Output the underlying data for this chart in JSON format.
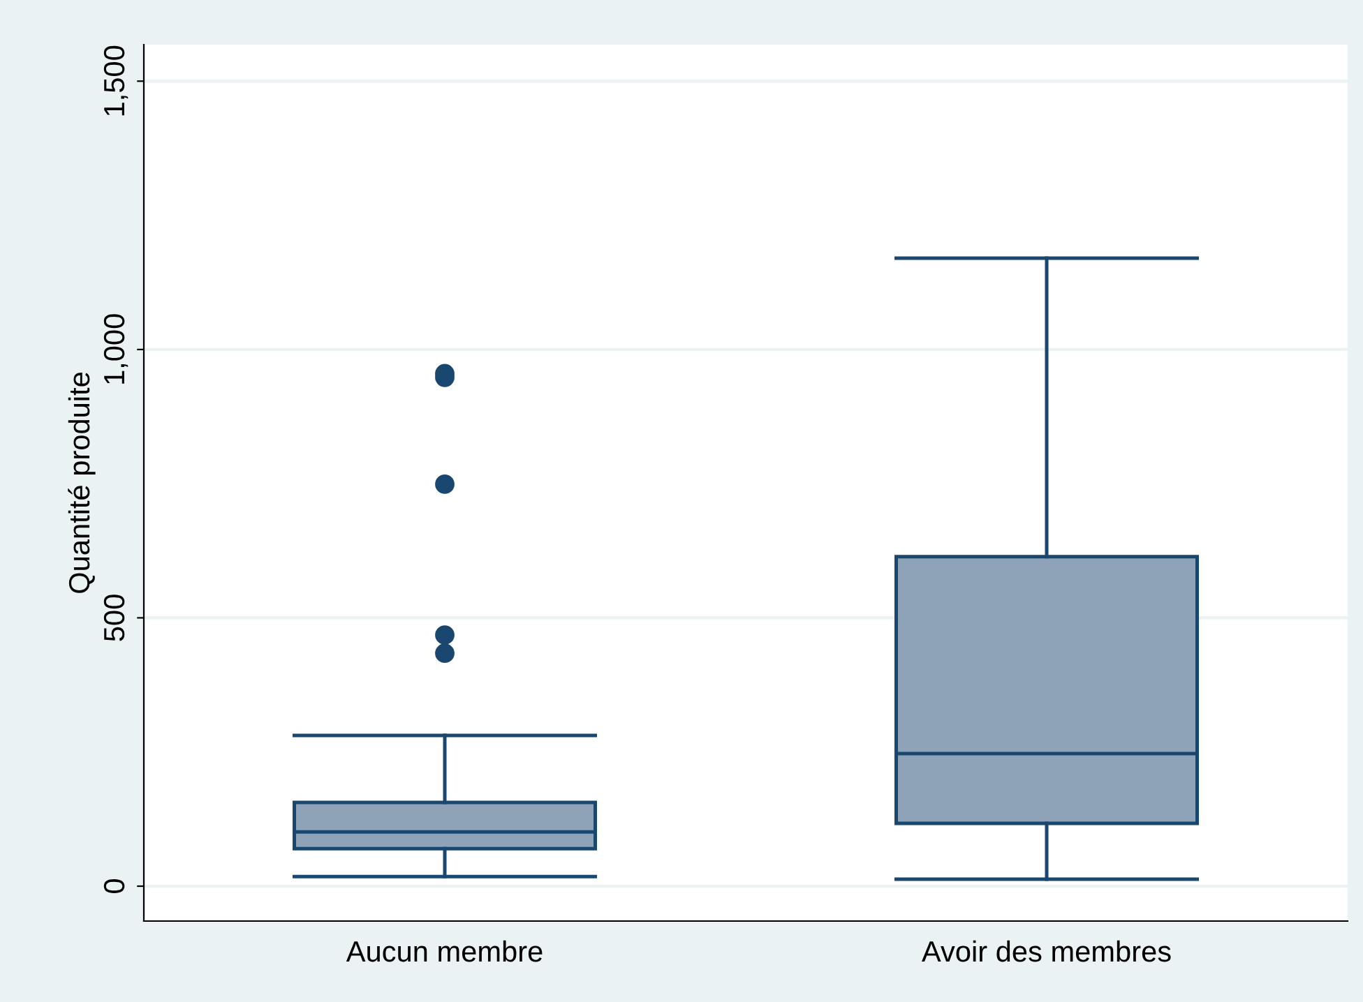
{
  "chart_data": {
    "type": "box",
    "ylabel": "Quantité produite",
    "categories": [
      "Aucun membre",
      "Avoir des membres"
    ],
    "boxes": [
      {
        "low": 18,
        "q1": 70,
        "median": 101,
        "q3": 156,
        "high": 281,
        "outliers": [
          955,
          948,
          749,
          468,
          434
        ]
      },
      {
        "low": 13,
        "q1": 117,
        "median": 247,
        "q3": 614,
        "high": 1170
      }
    ],
    "color": "#8ea3b7",
    "ylim": [
      -65,
      1568
    ],
    "yticks": [
      0,
      500,
      {
        "value": 1000,
        "label": "1,000"
      },
      {
        "value": 1500,
        "label": "1,500"
      }
    ],
    "grid": "y",
    "legend": false
  }
}
